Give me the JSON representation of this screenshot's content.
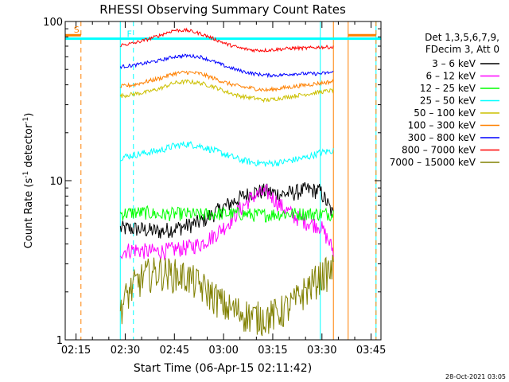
{
  "chart_data": {
    "type": "line",
    "title": "RHESSI Observing Summary Count Rates",
    "xlabel": "Start Time (06-Apr-15 02:11:42)",
    "ylabel": "Count Rate (s⁻¹ detector⁻¹)",
    "ylabel_parts": [
      "Count Rate (s",
      "-1",
      " detector",
      "-1",
      ")"
    ],
    "yscale": "log",
    "xlim": [
      "02:11:42",
      "03:48:00"
    ],
    "ylim": [
      1,
      100
    ],
    "x_ticks": [
      "02:15",
      "02:30",
      "02:45",
      "03:00",
      "03:15",
      "03:30",
      "03:45"
    ],
    "x_tick_minutes": [
      15,
      30,
      45,
      60,
      75,
      90,
      105
    ],
    "y_ticks": [
      1,
      10,
      100
    ],
    "legend_title": [
      "Det 1,3,5,6,7,9,",
      "FDecim 3, Att 0"
    ],
    "legend_position": "right",
    "series": [
      {
        "name": "3 – 6 keV",
        "color": "#000000",
        "start": 28.5,
        "end": 93.5,
        "values": [
          5.0,
          5.0,
          4.9,
          4.8,
          5.0,
          5.2,
          5.5,
          6.2,
          7.0,
          7.8,
          8.5,
          8.6,
          8.2,
          8.4,
          8.8,
          8.6,
          6.0
        ],
        "noise": 0.12
      },
      {
        "name": "6 – 12 keV",
        "color": "#ff00ff",
        "start": 28.5,
        "end": 93.5,
        "values": [
          3.6,
          3.7,
          3.6,
          3.6,
          3.7,
          3.8,
          4.0,
          4.5,
          5.3,
          6.6,
          8.0,
          8.5,
          7.0,
          6.0,
          5.5,
          5.2,
          3.6
        ],
        "noise": 0.12
      },
      {
        "name": "12 – 25 keV",
        "color": "#00ff00",
        "start": 28.5,
        "end": 93.5,
        "values": [
          6.2,
          6.3,
          6.3,
          6.1,
          6.2,
          6.2,
          6.1,
          6.2,
          6.2,
          6.2,
          6.1,
          6.1,
          6.2,
          6.2,
          6.2,
          6.2,
          6.2
        ],
        "noise": 0.1
      },
      {
        "name": "25 – 50 keV",
        "color": "#00ffff",
        "start": 28.5,
        "end": 93.5,
        "values": [
          14.0,
          14.5,
          15.0,
          15.5,
          16.5,
          17.0,
          16.5,
          15.5,
          14.5,
          13.5,
          13.0,
          12.8,
          13.0,
          13.5,
          14.0,
          15.0,
          15.5
        ],
        "noise": 0.05
      },
      {
        "name": "50 – 100 keV",
        "color": "#ccc000",
        "start": 28.5,
        "end": 93.5,
        "values": [
          34,
          35,
          36,
          38,
          41,
          42,
          41,
          39,
          36,
          34,
          33,
          32,
          33,
          34,
          35,
          36,
          37
        ],
        "noise": 0.03
      },
      {
        "name": "100 – 300 keV",
        "color": "#ff8000",
        "start": 28.5,
        "end": 93.5,
        "values": [
          39,
          40,
          42,
          44,
          47,
          48,
          47,
          44,
          41,
          39,
          38,
          37,
          38,
          39,
          40,
          41,
          42
        ],
        "noise": 0.03
      },
      {
        "name": "300 – 800 keV",
        "color": "#0000ff",
        "start": 28.5,
        "end": 93.5,
        "values": [
          52,
          53,
          55,
          57,
          60,
          61,
          60,
          56,
          52,
          49,
          47,
          46,
          46,
          47,
          47,
          47,
          48
        ],
        "noise": 0.025
      },
      {
        "name": "800 – 7000 keV",
        "color": "#ff0000",
        "start": 28.5,
        "end": 93.5,
        "values": [
          71,
          73,
          77,
          82,
          88,
          88,
          84,
          78,
          72,
          68,
          66,
          66,
          67,
          68,
          68,
          69,
          69
        ],
        "noise": 0.025
      },
      {
        "name": "7000 – 15000 keV",
        "color": "#808000",
        "start": 28.5,
        "end": 93.5,
        "values": [
          1.6,
          2.2,
          2.6,
          2.7,
          2.6,
          2.5,
          2.2,
          1.9,
          1.6,
          1.5,
          1.4,
          1.4,
          1.5,
          1.7,
          2.1,
          2.5,
          2.8
        ],
        "noise": 0.25
      }
    ],
    "flag_segments": [
      {
        "color": "#ff8000",
        "y": 82,
        "from": 11.7,
        "to": 16.5
      },
      {
        "color": "#ff8000",
        "y": 82,
        "from": 98.0,
        "to": 106.5
      },
      {
        "color": "#00ffff",
        "y": 78,
        "from": 11.7,
        "to": 108.0
      }
    ],
    "vertical_lines": [
      {
        "minute": 16.5,
        "color": "#ff8000",
        "style": "dashed"
      },
      {
        "minute": 28.5,
        "color": "#00ffff",
        "style": "solid"
      },
      {
        "minute": 32.5,
        "color": "#00ffff",
        "style": "dashed"
      },
      {
        "minute": 89.5,
        "color": "#00ffff",
        "style": "solid"
      },
      {
        "minute": 93.5,
        "color": "#ff8000",
        "style": "solid"
      },
      {
        "minute": 98.0,
        "color": "#ff8000",
        "style": "solid"
      },
      {
        "minute": 106.5,
        "color": "#00ffff",
        "style": "solid"
      },
      {
        "minute": 106.5,
        "color": "#ff8000",
        "style": "dashed"
      }
    ],
    "flag_labels": [
      {
        "text": "S",
        "color": "#ff8000"
      },
      {
        "text": "F",
        "color": "#00ffff"
      }
    ]
  },
  "footer_timestamp": "28-Oct-2021 03:05"
}
